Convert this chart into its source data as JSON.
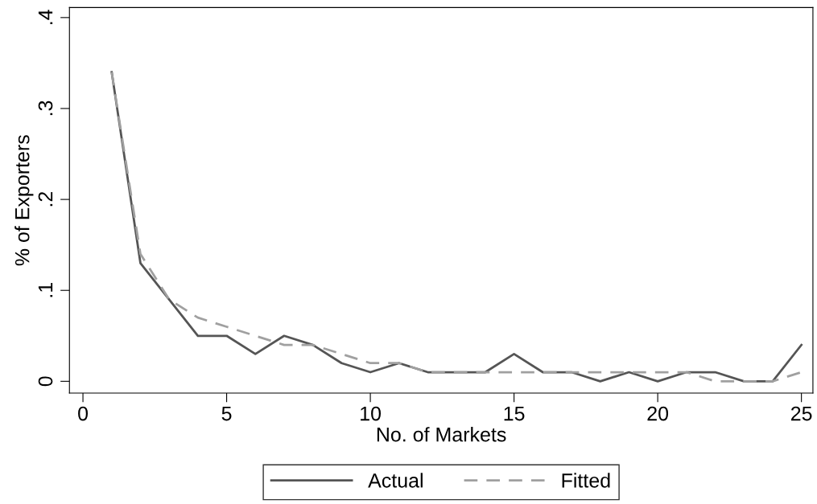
{
  "chart_data": {
    "type": "line",
    "xlabel": "No. of Markets",
    "ylabel": "% of Exporters",
    "x": [
      1,
      2,
      3,
      4,
      5,
      6,
      7,
      8,
      9,
      10,
      11,
      12,
      13,
      14,
      15,
      16,
      17,
      18,
      19,
      20,
      21,
      22,
      23,
      24,
      25
    ],
    "series": [
      {
        "name": "Actual",
        "color": "#555555",
        "line_style": "solid",
        "values": [
          0.34,
          0.13,
          0.09,
          0.05,
          0.05,
          0.03,
          0.05,
          0.04,
          0.02,
          0.01,
          0.02,
          0.01,
          0.01,
          0.01,
          0.03,
          0.01,
          0.01,
          0,
          0.01,
          0,
          0.01,
          0.01,
          0,
          0,
          0.04
        ]
      },
      {
        "name": "Fitted",
        "color": "#a0a0a0",
        "line_style": "dashed",
        "values": [
          0.34,
          0.14,
          0.09,
          0.07,
          0.06,
          0.05,
          0.04,
          0.04,
          0.03,
          0.02,
          0.02,
          0.01,
          0.01,
          0.01,
          0.01,
          0.01,
          0.01,
          0.01,
          0.01,
          0.01,
          0.01,
          0,
          0,
          0,
          0.01
        ]
      }
    ],
    "xlim": [
      -0.47,
      25.4
    ],
    "ylim": [
      -0.013,
      0.411
    ],
    "xticks": [
      0,
      5,
      10,
      15,
      20,
      25
    ],
    "yticks": [
      {
        "value": 0,
        "label": "0"
      },
      {
        "value": 0.1,
        "label": ".1"
      },
      {
        "value": 0.2,
        "label": ".2"
      },
      {
        "value": 0.3,
        "label": ".3"
      },
      {
        "value": 0.4,
        "label": ".4"
      }
    ],
    "grid": false,
    "legend": "bottom",
    "marker": "none"
  }
}
